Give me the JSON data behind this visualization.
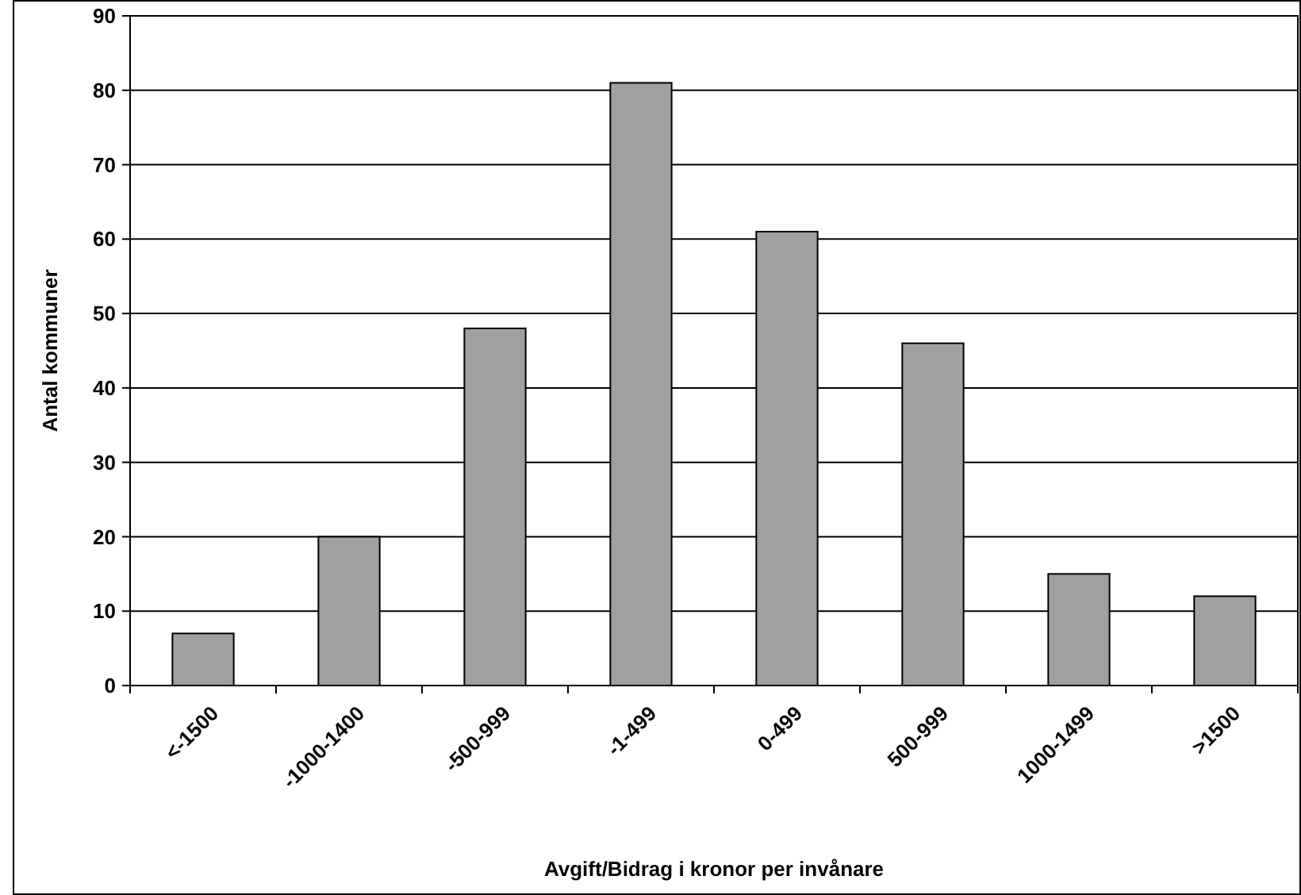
{
  "chart_data": {
    "type": "bar",
    "xlabel": "Avgift/Bidrag i kronor per invånare",
    "ylabel": "Antal kommuner",
    "categories": [
      "<-1500",
      "-1000-1400",
      "-500-999",
      "-1-499",
      "0-499",
      "500-999",
      "1000-1499",
      ">1500"
    ],
    "values": [
      7,
      20,
      48,
      81,
      61,
      46,
      15,
      12
    ],
    "color": "#a0a0a0",
    "ylim": [
      0,
      90
    ],
    "yticks": [
      0,
      10,
      20,
      30,
      40,
      50,
      60,
      70,
      80,
      90
    ],
    "grid": "y"
  }
}
